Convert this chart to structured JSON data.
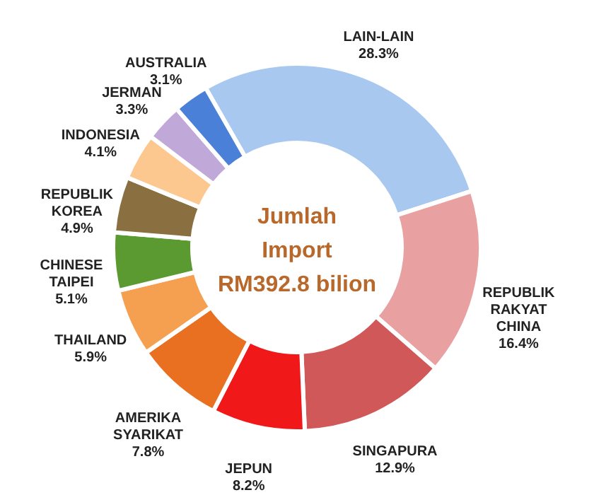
{
  "chart_data": {
    "type": "donut",
    "title": "Jumlah Import RM392.8 bilion",
    "categories": [
      "LAIN-LAIN",
      "REPUBLIK RAKYAT CHINA",
      "SINGAPURA",
      "JEPUN",
      "AMERIKA SYARIKAT",
      "THAILAND",
      "CHINESE TAIPEI",
      "REPUBLIK KOREA",
      "INDONESIA",
      "JERMAN",
      "AUSTRALIA"
    ],
    "values": [
      28.3,
      16.4,
      12.9,
      8.2,
      7.8,
      5.9,
      5.1,
      4.9,
      4.1,
      3.3,
      3.1
    ],
    "value_labels": [
      "28.3%",
      "16.4%",
      "12.9%",
      "8.2%",
      "7.8%",
      "5.9%",
      "5.1%",
      "4.9%",
      "4.1%",
      "3.3%",
      "3.1%"
    ],
    "colors": [
      "#a8c8f0",
      "#e8a0a0",
      "#d05858",
      "#f01818",
      "#e87020",
      "#f5a050",
      "#5a9a30",
      "#8a7040",
      "#fcc890",
      "#c0a8d8",
      "#4a80d8"
    ]
  }
}
